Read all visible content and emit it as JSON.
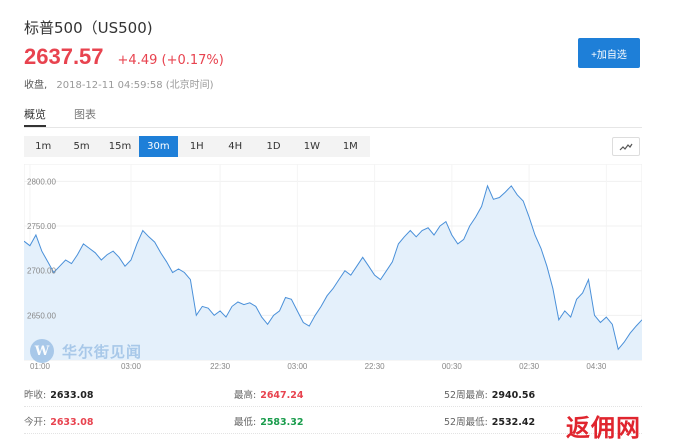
{
  "header": {
    "title": "标普500（US500)",
    "price": "2637.57",
    "change": "+4.49 (+0.17%)",
    "status_label": "收盘,",
    "timestamp": "2018-12-11 04:59:58 (北京时间)",
    "add_button": "+加自选"
  },
  "tabs": [
    {
      "label": "概览",
      "active": true
    },
    {
      "label": "图表",
      "active": false
    }
  ],
  "periods": [
    {
      "label": "1m"
    },
    {
      "label": "5m"
    },
    {
      "label": "15m"
    },
    {
      "label": "30m",
      "active": true
    },
    {
      "label": "1H"
    },
    {
      "label": "4H"
    },
    {
      "label": "1D"
    },
    {
      "label": "1W"
    },
    {
      "label": "1M"
    }
  ],
  "chart_toggle_icon": "line-chart-icon",
  "watermark": {
    "logo": "W",
    "text": "华尔街见闻"
  },
  "corner_mark": "返佣网",
  "colors": {
    "accent": "#1e7fd8",
    "up": "#e8434f",
    "down": "#1a9c4c",
    "area": "#e4f0fb",
    "line": "#4a90d9"
  },
  "stats": {
    "prev_close": {
      "label": "昨收:",
      "value": "2633.08"
    },
    "high": {
      "label": "最高:",
      "value": "2647.24"
    },
    "high_52w": {
      "label": "52周最高:",
      "value": "2940.56"
    },
    "open": {
      "label": "今开:",
      "value": "2633.08"
    },
    "low": {
      "label": "最低:",
      "value": "2583.32"
    },
    "low_52w": {
      "label": "52周最低:",
      "value": "2532.42"
    }
  },
  "chart_data": {
    "type": "area",
    "ylim": [
      2600,
      2815
    ],
    "ytick_labels": [
      "2800.00",
      "2750.00",
      "2700.00",
      "2650.00"
    ],
    "yticks": [
      2800,
      2750,
      2700,
      2650
    ],
    "xtick_labels": [
      "01:00",
      "03:00",
      "22:30",
      "03:00",
      "22:30",
      "00:30",
      "02:30",
      "04:30"
    ],
    "xtick_positions": [
      1,
      18,
      33,
      46,
      59,
      72,
      85,
      98
    ],
    "grid": true,
    "values": [
      2733,
      2728,
      2740,
      2722,
      2710,
      2698,
      2705,
      2712,
      2708,
      2718,
      2730,
      2725,
      2720,
      2712,
      2718,
      2722,
      2715,
      2705,
      2712,
      2730,
      2745,
      2738,
      2732,
      2720,
      2710,
      2698,
      2702,
      2698,
      2690,
      2650,
      2660,
      2658,
      2650,
      2655,
      2648,
      2660,
      2665,
      2662,
      2664,
      2660,
      2648,
      2640,
      2650,
      2655,
      2670,
      2668,
      2655,
      2642,
      2638,
      2650,
      2660,
      2672,
      2680,
      2690,
      2700,
      2695,
      2705,
      2715,
      2705,
      2695,
      2690,
      2700,
      2710,
      2730,
      2738,
      2745,
      2738,
      2745,
      2748,
      2740,
      2750,
      2755,
      2740,
      2730,
      2735,
      2750,
      2760,
      2772,
      2795,
      2780,
      2782,
      2788,
      2795,
      2785,
      2778,
      2760,
      2740,
      2725,
      2705,
      2680,
      2645,
      2655,
      2648,
      2668,
      2675,
      2690,
      2650,
      2642,
      2648,
      2640,
      2612,
      2620,
      2630,
      2638,
      2645
    ]
  }
}
